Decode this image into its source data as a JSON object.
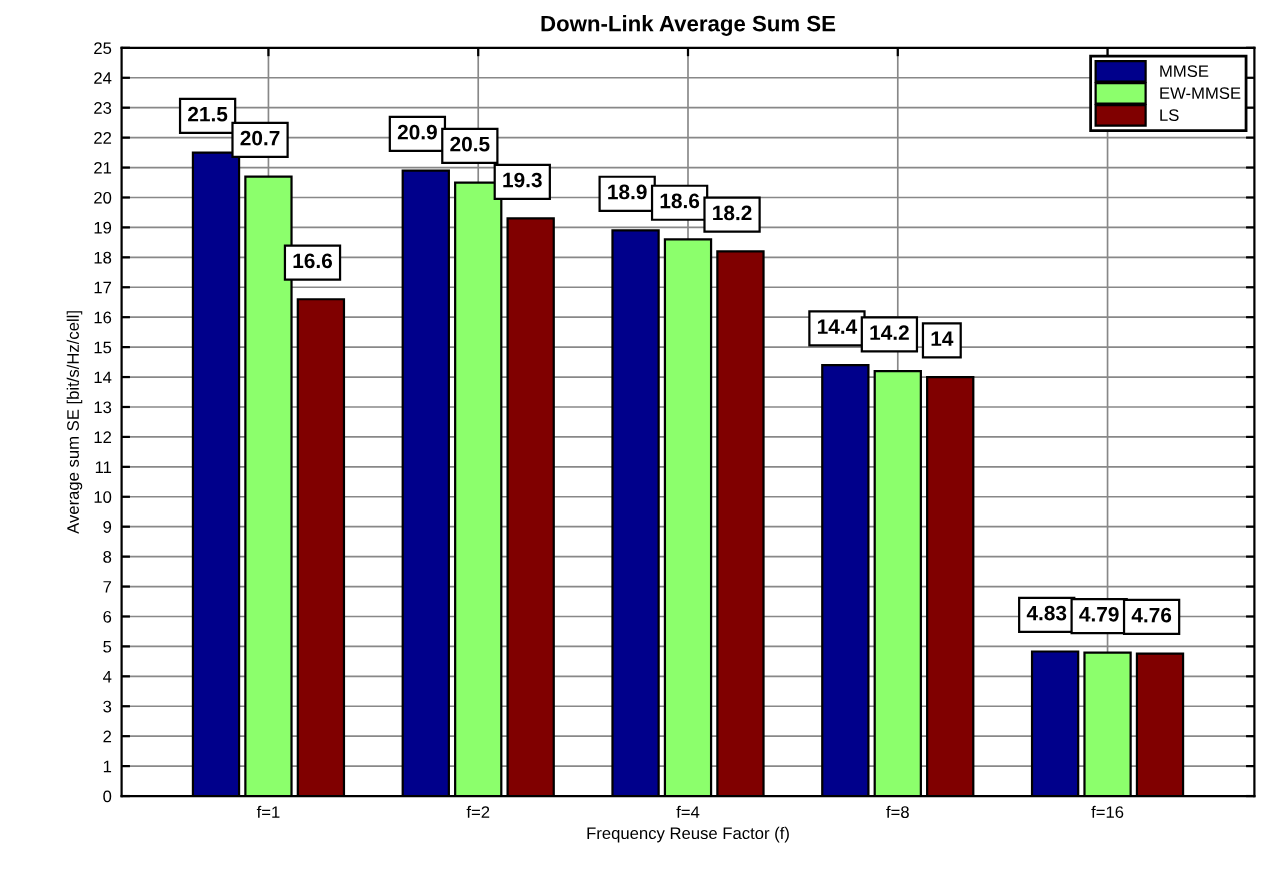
{
  "chart_data": {
    "type": "bar",
    "title": "Down-Link Average Sum SE",
    "xlabel": "Frequency Reuse Factor (f)",
    "ylabel": "Average sum SE [bit/s/Hz/cell]",
    "categories": [
      "f=1",
      "f=2",
      "f=4",
      "f=8",
      "f=16"
    ],
    "series": [
      {
        "name": "MMSE",
        "color": "#00008b",
        "values": [
          21.5,
          20.9,
          18.9,
          14.4,
          4.83
        ]
      },
      {
        "name": "EW-MMSE",
        "color": "#8cff6c",
        "values": [
          20.7,
          20.5,
          18.6,
          14.2,
          4.79
        ]
      },
      {
        "name": "LS",
        "color": "#800000",
        "values": [
          16.6,
          19.3,
          18.2,
          14,
          4.76
        ]
      }
    ],
    "ylim": [
      0,
      25
    ],
    "yticks": [
      0,
      1,
      2,
      3,
      4,
      5,
      6,
      7,
      8,
      9,
      10,
      11,
      12,
      13,
      14,
      15,
      16,
      17,
      18,
      19,
      20,
      21,
      22,
      23,
      24,
      25
    ],
    "grid": true,
    "legend": "top right",
    "data_labels": true
  }
}
